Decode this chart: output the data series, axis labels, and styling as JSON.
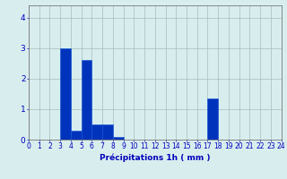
{
  "values": [
    0,
    0,
    0,
    3.0,
    0.3,
    2.6,
    0.5,
    0.5,
    0.1,
    0,
    0,
    0,
    0,
    0,
    0,
    0,
    0,
    1.35,
    0,
    0,
    0,
    0,
    0,
    0
  ],
  "bar_color": "#0033bb",
  "bar_edge_color": "#1155dd",
  "background_color": "#d8eeee",
  "grid_color": "#aabbbb",
  "xlabel": "Précipitations 1h ( mm )",
  "xlabel_color": "#0000bb",
  "tick_color": "#0000bb",
  "ylim": [
    0,
    4.4
  ],
  "yticks": [
    0,
    1,
    2,
    3,
    4
  ],
  "num_bars": 24,
  "tick_fontsize": 5.5,
  "xlabel_fontsize": 6.5
}
